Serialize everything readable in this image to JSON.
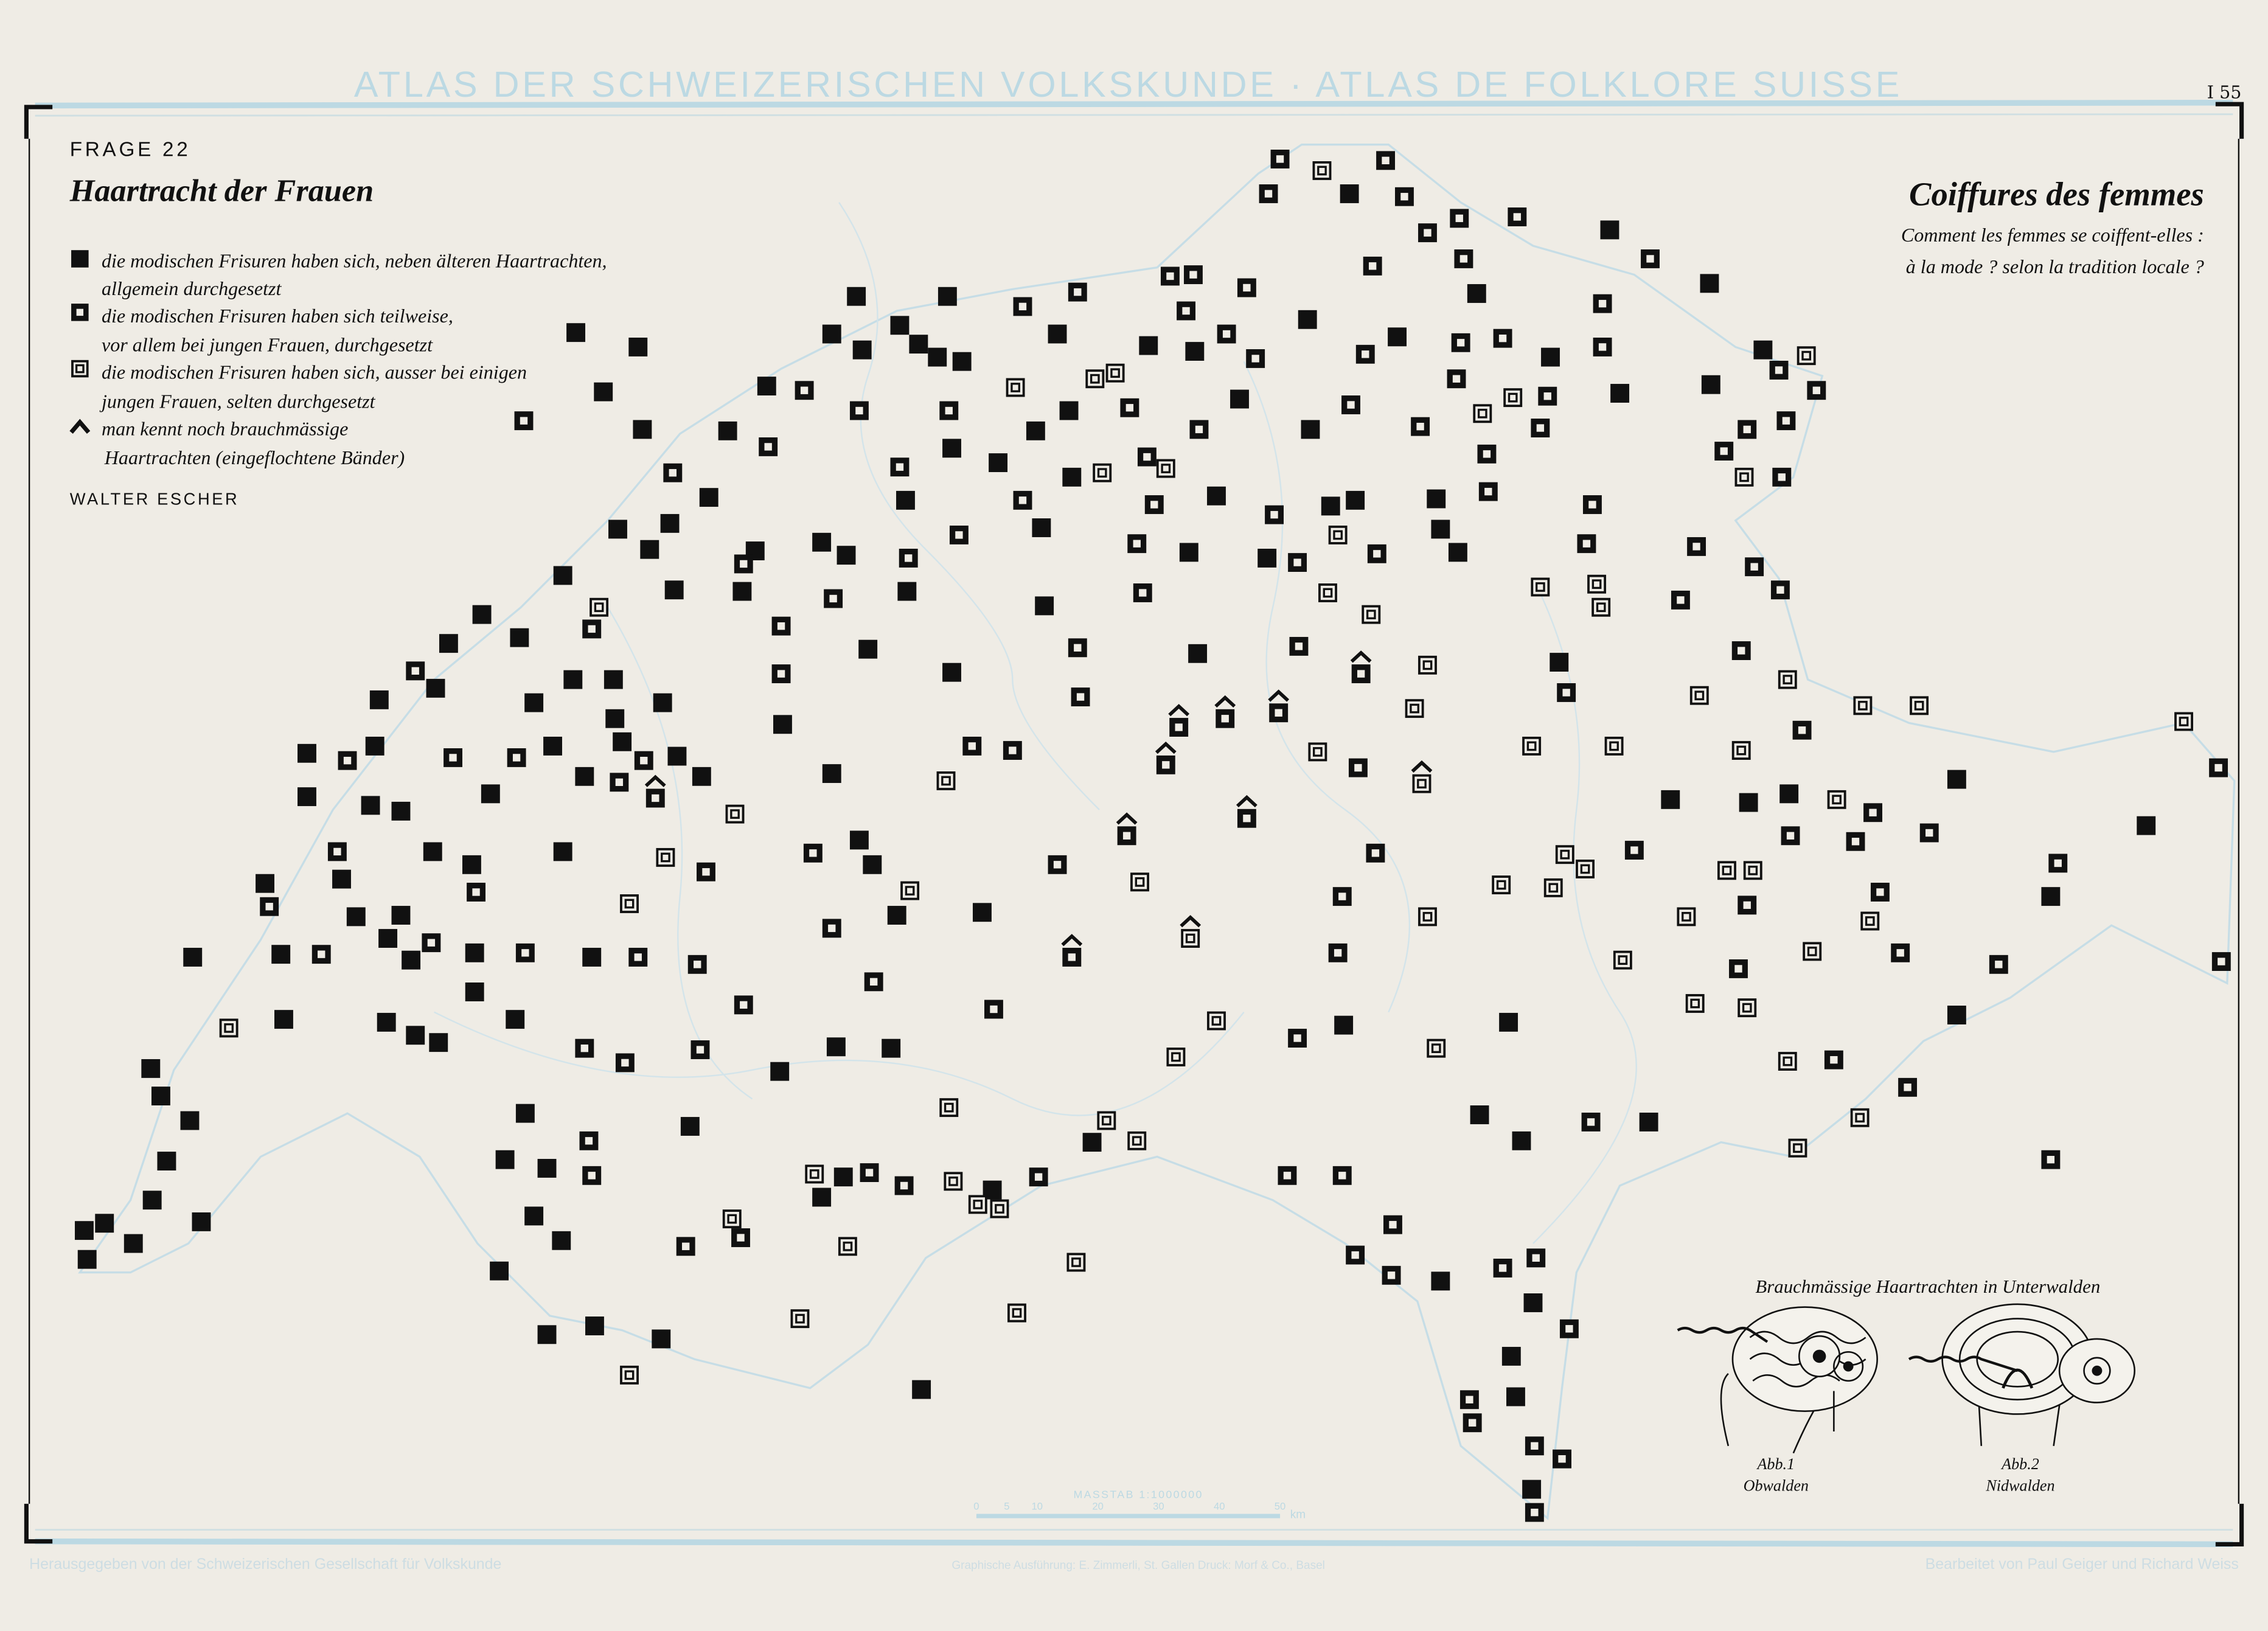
{
  "header": {
    "atlas_title": "ATLAS DER SCHWEIZERISCHEN VOLKSKUNDE · ATLAS DE FOLKLORE SUISSE",
    "sheet_number": "I 55"
  },
  "question": {
    "label": "FRAGE 22",
    "title_de": "Haartracht der Frauen",
    "title_fr": "Coiffures des femmes",
    "subtitle_fr_line1": "Comment les femmes se coiffent-elles :",
    "subtitle_fr_line2": "à la mode ? selon la tradition locale ?"
  },
  "legend": {
    "items": [
      {
        "symbol": "filled-square",
        "line1": "die modischen Frisuren haben sich, neben älteren Haartrachten,",
        "line2": "allgemein durchgesetzt"
      },
      {
        "symbol": "square-with-dot",
        "line1": "die modischen Frisuren haben sich teilweise,",
        "line2": "vor allem bei jungen Frauen, durchgesetzt"
      },
      {
        "symbol": "double-square",
        "line1": "die modischen Frisuren haben sich, ausser bei einigen",
        "line2": "jungen Frauen, selten durchgesetzt"
      },
      {
        "symbol": "caret",
        "line1": "man kennt noch brauchmässige",
        "line2": "Haartrachten (eingeflochtene Bänder)"
      }
    ],
    "author": "WALTER ESCHER"
  },
  "illustration": {
    "title": "Brauchmässige Haartrachten in Unterwalden",
    "figures": [
      {
        "label": "Abb.1",
        "region": "Obwalden"
      },
      {
        "label": "Abb.2",
        "region": "Nidwalden"
      }
    ]
  },
  "scale": {
    "label": "MASSTAB 1:1000000",
    "ticks": [
      "0",
      "5",
      "10",
      "20",
      "30",
      "40",
      "50"
    ],
    "unit": "km"
  },
  "footer": {
    "left": "Herausgegeben von der Schweizerischen Gesellschaft für Volkskunde",
    "center": "Graphische Ausführung: E. Zimmerli, St. Gallen    Druck: Morf & Co., Basel",
    "right": "Bearbeitet von Paul Geiger und Richard Weiss"
  },
  "colors": {
    "paper": "#efece5",
    "ink": "#111111",
    "map_blue": "#bcd9e3",
    "footer_text": "#cddde3"
  }
}
